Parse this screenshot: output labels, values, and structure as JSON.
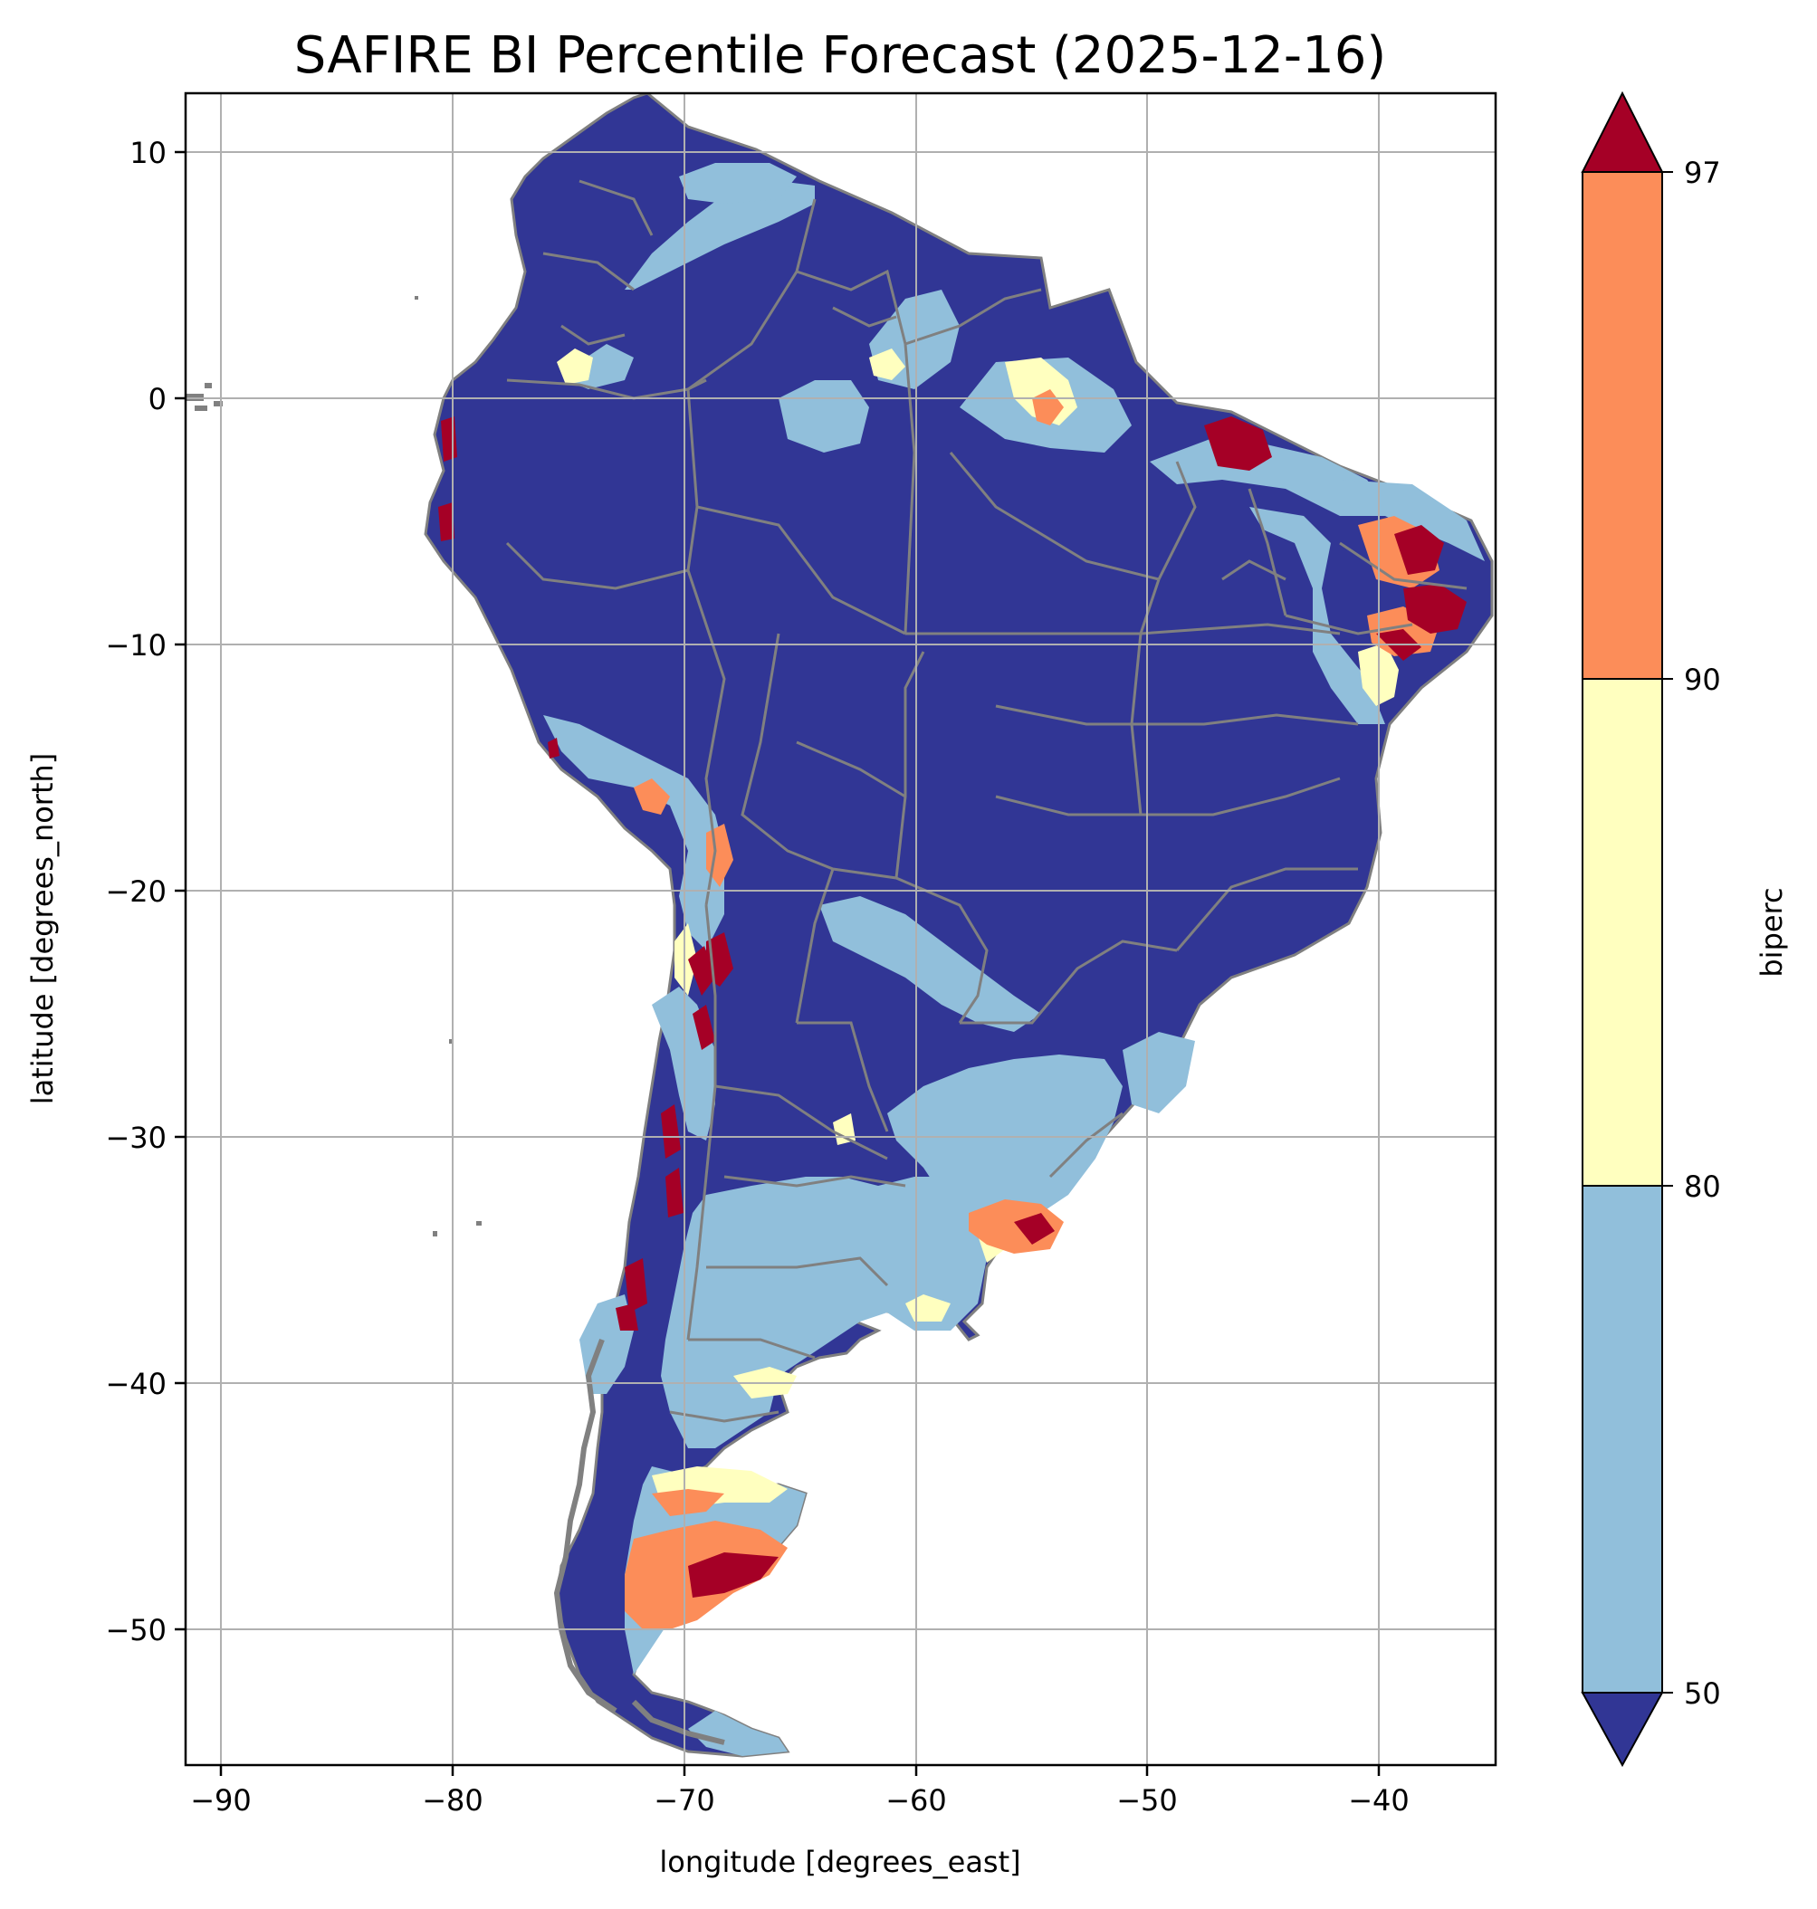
{
  "title": "SAFIRE BI Percentile Forecast (2025-12-16)",
  "chart_data": {
    "type": "heatmap",
    "title": "SAFIRE BI Percentile Forecast (2025-12-16)",
    "xlabel": "longitude [degrees_east]",
    "ylabel": "latitude [degrees_north]",
    "xlim": [
      -91.6,
      -35.0
    ],
    "ylim": [
      -55.9,
      12.4
    ],
    "x_ticks": [
      -90,
      -80,
      -70,
      -60,
      -50,
      -40
    ],
    "x_tick_labels": [
      "−90",
      "−80",
      "−70",
      "−60",
      "−50",
      "−40"
    ],
    "y_ticks": [
      10,
      0,
      -10,
      -20,
      -30,
      -40,
      -50
    ],
    "y_tick_labels": [
      "10",
      "0",
      "−10",
      "−20",
      "−30",
      "−40",
      "−50"
    ],
    "grid": true,
    "colorbar": {
      "label": "biperc",
      "ticks": [
        "50",
        "80",
        "90",
        "97"
      ],
      "bins": [
        {
          "range": "<50",
          "color": "#313695"
        },
        {
          "range": "50-80",
          "color": "#91bfdb"
        },
        {
          "range": "80-90",
          "color": "#ffffbf"
        },
        {
          "range": "90-97",
          "color": "#fc8d59"
        },
        {
          "range": ">97",
          "color": "#a50026"
        }
      ],
      "extend": "both"
    },
    "border_color": "#808080",
    "grid_color": "#b0b0b0"
  }
}
